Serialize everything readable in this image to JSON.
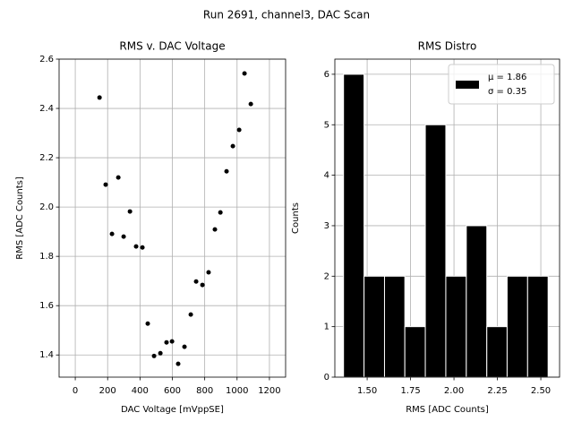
{
  "title": "Run 2691, channel3, DAC Scan",
  "chart_data": [
    {
      "type": "scatter",
      "title": "RMS v. DAC Voltage",
      "xlabel": "DAC Voltage [mVppSE]",
      "ylabel": "RMS [ADC Counts]",
      "color": "#000000",
      "grid": true,
      "x": [
        150,
        188,
        227,
        266,
        299,
        338,
        376,
        415,
        448,
        487,
        526,
        564,
        598,
        636,
        675,
        714,
        747,
        786,
        824,
        863,
        897,
        935,
        974,
        1013,
        1046,
        1085
      ],
      "values": [
        2.444,
        2.091,
        1.891,
        2.12,
        1.88,
        1.982,
        1.84,
        1.836,
        1.527,
        1.396,
        1.407,
        1.451,
        1.455,
        1.364,
        1.433,
        1.564,
        1.698,
        1.684,
        1.735,
        1.909,
        1.978,
        2.145,
        2.247,
        2.313,
        2.542,
        2.418
      ],
      "xlim": [
        -100,
        1300
      ],
      "xticks": [
        0,
        200,
        400,
        600,
        800,
        1000,
        1200
      ],
      "ylim": [
        1.31,
        2.6
      ],
      "yticks": [
        1.4,
        1.6,
        1.8,
        {
          "value": 2.0,
          "label": "2.0"
        },
        2.2,
        2.4,
        2.6
      ]
    },
    {
      "type": "histogram",
      "title": "RMS Distro",
      "xlabel": "RMS [ADC Counts]",
      "ylabel": "Counts",
      "color": "#000000",
      "grid": true,
      "bins": [
        1.364,
        1.482,
        1.6,
        1.717,
        1.835,
        1.953,
        2.071,
        2.189,
        2.306,
        2.424,
        2.542
      ],
      "values": [
        6,
        2,
        2,
        1,
        5,
        2,
        3,
        1,
        2,
        2
      ],
      "xlim": [
        1.314,
        2.608
      ],
      "xticks": [
        {
          "value": 1.5,
          "label": "1.50"
        },
        1.75,
        {
          "value": 2.0,
          "label": "2.00"
        },
        2.25,
        {
          "value": 2.5,
          "label": "2.50"
        }
      ],
      "ylim": [
        0,
        6.3
      ],
      "yticks": [
        0,
        1,
        2,
        3,
        4,
        5,
        6
      ],
      "legend": {
        "position": "upper right",
        "labels": [
          "μ = 1.86",
          "σ = 0.35"
        ]
      }
    }
  ]
}
